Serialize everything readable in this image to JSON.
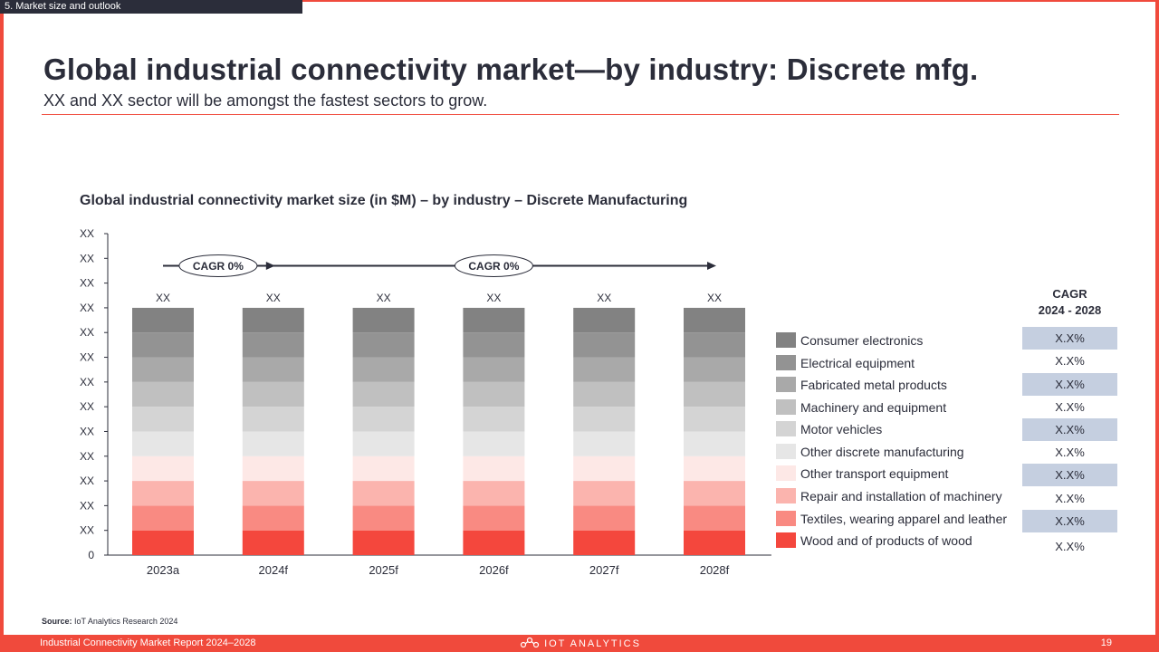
{
  "section_tab": "5. Market size and outlook",
  "title": "Global industrial connectivity market—by industry: Discrete mfg.",
  "subtitle": "XX and XX sector will be amongst the fastest sectors to grow.",
  "source": {
    "label": "Source:",
    "text": "IoT Analytics Research 2024"
  },
  "footer": {
    "report": "Industrial Connectivity Market Report 2024–2028",
    "brand": "IOT ANALYTICS",
    "page": "19"
  },
  "colors": {
    "accent": "#f04a3c",
    "dark": "#2b2d3a",
    "cagr_shade": "#c5cfe0"
  },
  "cagr_table": {
    "header_line1": "CAGR",
    "header_line2": "2024 - 2028",
    "values": [
      "X.X%",
      "X.X%",
      "X.X%",
      "X.X%",
      "X.X%",
      "X.X%",
      "X.X%",
      "X.X%",
      "X.X%",
      "X.X%"
    ]
  },
  "chart_data": {
    "type": "bar",
    "stacked": true,
    "title": "Global industrial connectivity market size (in $M) – by industry – Discrete Manufacturing",
    "categories": [
      "2023a",
      "2024f",
      "2025f",
      "2026f",
      "2027f",
      "2028f"
    ],
    "bar_totals_labels": [
      "XX",
      "XX",
      "XX",
      "XX",
      "XX",
      "XX"
    ],
    "y_tick_labels": [
      "0",
      "XX",
      "XX",
      "XX",
      "XX",
      "XX",
      "XX",
      "XX",
      "XX",
      "XX",
      "XX",
      "XX",
      "XX",
      "XX"
    ],
    "ylim": [
      0,
      13
    ],
    "series": [
      {
        "name": "Wood and of products of wood",
        "color": "#f4473d",
        "values": [
          1,
          1,
          1,
          1,
          1,
          1
        ]
      },
      {
        "name": "Textiles, wearing apparel and leather",
        "color": "#f98a82",
        "values": [
          1,
          1,
          1,
          1,
          1,
          1
        ]
      },
      {
        "name": "Repair and installation of machinery",
        "color": "#fbb4ae",
        "values": [
          1,
          1,
          1,
          1,
          1,
          1
        ]
      },
      {
        "name": "Other transport equipment",
        "color": "#fde8e6",
        "values": [
          1,
          1,
          1,
          1,
          1,
          1
        ]
      },
      {
        "name": "Other discrete manufacturing",
        "color": "#e6e6e6",
        "values": [
          1,
          1,
          1,
          1,
          1,
          1
        ]
      },
      {
        "name": "Motor vehicles",
        "color": "#d4d4d4",
        "values": [
          1,
          1,
          1,
          1,
          1,
          1
        ]
      },
      {
        "name": "Machinery and equipment",
        "color": "#c0c0c0",
        "values": [
          1,
          1,
          1,
          1,
          1,
          1
        ]
      },
      {
        "name": "Fabricated metal products",
        "color": "#a9a9a9",
        "values": [
          1,
          1,
          1,
          1,
          1,
          1
        ]
      },
      {
        "name": "Electrical equipment",
        "color": "#939393",
        "values": [
          1,
          1,
          1,
          1,
          1,
          1
        ]
      },
      {
        "name": "Consumer electronics",
        "color": "#828282",
        "values": [
          1,
          1,
          1,
          1,
          1,
          1
        ]
      }
    ],
    "cagr_annotations": [
      {
        "label": "CAGR 0%",
        "from": "2023a",
        "to": "2024f"
      },
      {
        "label": "CAGR 0%",
        "from": "2024f",
        "to": "2028f"
      }
    ]
  }
}
